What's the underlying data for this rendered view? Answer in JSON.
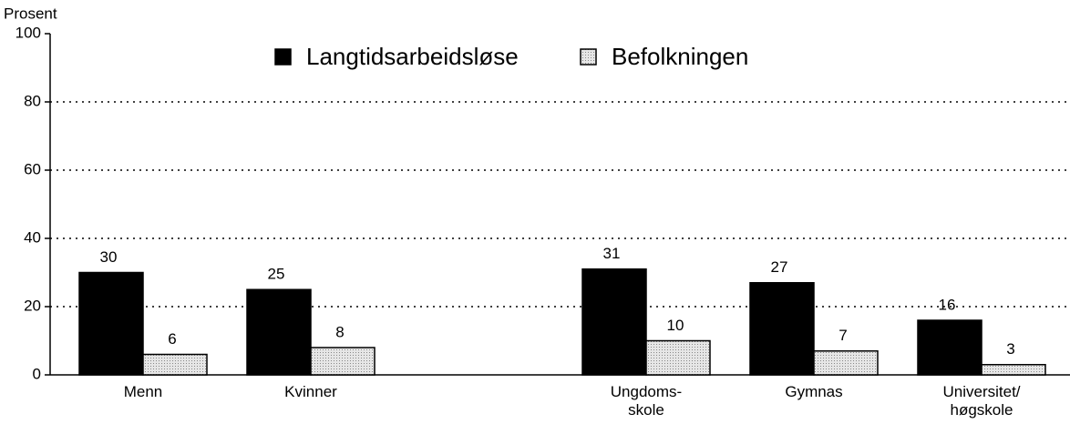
{
  "chart_data": {
    "type": "bar",
    "y_label": "Prosent",
    "categories": [
      "Menn",
      "Kvinner",
      null,
      "Ungdoms-\nskole",
      "Gymnas",
      "Universitet/\nhøgskole"
    ],
    "series": [
      {
        "name": "Langtidsarbeidsløse",
        "color": "#000000",
        "values": [
          30,
          25,
          null,
          31,
          27,
          16
        ]
      },
      {
        "name": "Befolkningen",
        "color": "#d4d4d4",
        "values": [
          6,
          8,
          null,
          10,
          7,
          3
        ]
      }
    ],
    "ylim": [
      0,
      100
    ],
    "yticks": [
      0,
      20,
      40,
      60,
      80,
      100
    ],
    "grid": true,
    "legend": "top"
  }
}
